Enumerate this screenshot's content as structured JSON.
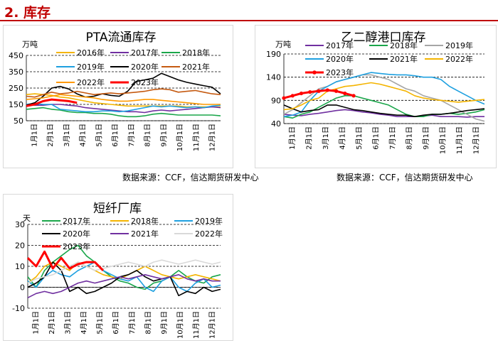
{
  "section_title": "2. 库存",
  "sources": {
    "pta": "数据来源：CCF，信达期货研发中心",
    "meg": "数据来源：CCF，信达期货研发中心"
  },
  "chart_data": [
    {
      "type": "line",
      "title": "PTA流通库存",
      "ylabel": "万吨",
      "ylim": [
        50,
        450
      ],
      "yticks": [
        50,
        150,
        250,
        350,
        450
      ],
      "grid": true,
      "x_ticks": [
        "1月1日",
        "2月1日",
        "3月1日",
        "4月1日",
        "5月1日",
        "6月1日",
        "7月1日",
        "8月1日",
        "9月1日",
        "10月1日",
        "11月1日",
        "12月1日"
      ],
      "series": [
        {
          "name": "2016年",
          "color": "#f4b400",
          "values": [
            210,
            215,
            210,
            205,
            195,
            190,
            180,
            170,
            160,
            155,
            150,
            145,
            140,
            140,
            140,
            140,
            140,
            140,
            140,
            135,
            135,
            135,
            135,
            135
          ]
        },
        {
          "name": "2017年",
          "color": "#7030a0",
          "values": [
            150,
            145,
            145,
            150,
            150,
            145,
            140,
            130,
            125,
            120,
            115,
            110,
            105,
            105,
            100,
            110,
            115,
            110,
            115,
            120,
            125,
            130,
            135,
            130
          ]
        },
        {
          "name": "2018年",
          "color": "#1aa64a",
          "values": [
            120,
            125,
            130,
            120,
            115,
            105,
            100,
            100,
            95,
            95,
            90,
            80,
            75,
            75,
            80,
            90,
            95,
            90,
            85,
            85,
            85,
            85,
            85,
            80
          ]
        },
        {
          "name": "2019年",
          "color": "#1ea0e0",
          "values": [
            150,
            155,
            150,
            150,
            120,
            115,
            110,
            105,
            105,
            110,
            110,
            105,
            110,
            120,
            130,
            140,
            135,
            140,
            135,
            130,
            135,
            130,
            140,
            145
          ]
        },
        {
          "name": "2020年",
          "color": "#000000",
          "values": [
            145,
            160,
            200,
            250,
            260,
            245,
            215,
            195,
            200,
            215,
            205,
            200,
            230,
            290,
            300,
            310,
            340,
            320,
            300,
            285,
            275,
            265,
            255,
            215
          ]
        },
        {
          "name": "2021年",
          "color": "#c55a11",
          "values": [
            200,
            195,
            210,
            225,
            215,
            220,
            230,
            220,
            210,
            215,
            220,
            215,
            220,
            225,
            230,
            240,
            245,
            240,
            225,
            230,
            235,
            225,
            215,
            210
          ]
        },
        {
          "name": "2022年",
          "color": "#ff9900",
          "values": [
            180,
            185,
            190,
            200,
            210,
            205,
            200,
            195,
            190,
            180,
            175,
            170,
            170,
            175,
            180,
            180,
            175,
            170,
            165,
            160,
            155,
            150,
            150,
            150
          ]
        },
        {
          "name": "2023年",
          "color": "#ff0000",
          "values": [
            140,
            150,
            170,
            180,
            175,
            170,
            160
          ]
        }
      ]
    },
    {
      "type": "line",
      "title": "乙二醇港口库存",
      "ylabel": "万吨",
      "ylim": [
        40,
        190
      ],
      "yticks": [
        40,
        90,
        140,
        190
      ],
      "grid": true,
      "x_ticks": [
        "1月1日",
        "2月1日",
        "3月1日",
        "4月1日",
        "5月1日",
        "6月1日",
        "7月1日",
        "8月1日",
        "9月1日",
        "10月1日",
        "11月1日",
        "12月1日"
      ],
      "series": [
        {
          "name": "2017年",
          "color": "#7030a0",
          "values": [
            60,
            58,
            57,
            60,
            62,
            65,
            68,
            70,
            68,
            65,
            63,
            60,
            58,
            55,
            55,
            55,
            56,
            58,
            55,
            55,
            55,
            54,
            55,
            55
          ]
        },
        {
          "name": "2018年",
          "color": "#1aa64a",
          "values": [
            55,
            52,
            60,
            65,
            75,
            85,
            95,
            100,
            100,
            95,
            90,
            85,
            80,
            70,
            60,
            55,
            55,
            60,
            60,
            62,
            60,
            62,
            65,
            70
          ]
        },
        {
          "name": "2019年",
          "color": "#a6a6a6",
          "values": [
            60,
            70,
            85,
            100,
            115,
            120,
            130,
            135,
            140,
            145,
            145,
            140,
            135,
            125,
            115,
            110,
            100,
            95,
            90,
            80,
            70,
            60,
            50,
            45
          ]
        },
        {
          "name": "2020年",
          "color": "#1ea0e0",
          "values": [
            55,
            58,
            65,
            90,
            110,
            120,
            130,
            135,
            140,
            145,
            150,
            148,
            146,
            145,
            145,
            143,
            140,
            140,
            135,
            120,
            110,
            100,
            90,
            82
          ]
        },
        {
          "name": "2021年",
          "color": "#000000",
          "values": [
            80,
            72,
            65,
            68,
            70,
            80,
            80,
            75,
            70,
            68,
            65,
            62,
            60,
            58,
            58,
            55,
            58,
            60,
            60,
            62,
            65,
            68,
            70,
            72
          ]
        },
        {
          "name": "2022年",
          "color": "#f4b400",
          "values": [
            70,
            72,
            80,
            90,
            95,
            110,
            115,
            120,
            122,
            125,
            128,
            125,
            120,
            115,
            110,
            100,
            95,
            92,
            90,
            88,
            86,
            88,
            90,
            92
          ]
        },
        {
          "name": "2023年",
          "color": "#ff0000",
          "values": [
            95,
            100,
            105,
            108,
            110,
            112,
            110,
            105,
            100
          ]
        }
      ]
    },
    {
      "type": "line",
      "title": "短纤厂库",
      "ylabel": "天",
      "ylim": [
        -10,
        30
      ],
      "yticks": [
        -10,
        0,
        10,
        20,
        30
      ],
      "grid": true,
      "x_ticks": [
        "1月1日",
        "2月1日",
        "3月1日",
        "4月1日",
        "5月1日",
        "6月1日",
        "7月1日",
        "8月1日",
        "9月1日",
        "10月1日",
        "11月1日",
        "12月1日"
      ],
      "series": [
        {
          "name": "2017年",
          "color": "#1aa64a",
          "values": [
            5,
            0,
            8,
            12,
            15,
            18,
            20,
            15,
            12,
            8,
            5,
            3,
            2,
            0,
            -1,
            2,
            3,
            5,
            8,
            5,
            3,
            2,
            5,
            6
          ]
        },
        {
          "name": "2018年",
          "color": "#f4b400",
          "values": [
            2,
            5,
            10,
            12,
            10,
            8,
            12,
            10,
            8,
            6,
            5,
            4,
            6,
            8,
            10,
            8,
            6,
            5,
            4,
            5,
            6,
            5,
            4,
            3
          ]
        },
        {
          "name": "2019年",
          "color": "#1ea0e0",
          "values": [
            3,
            0,
            5,
            8,
            6,
            5,
            8,
            10,
            12,
            8,
            6,
            4,
            3,
            5,
            0,
            -2,
            3,
            5,
            0,
            -2,
            2,
            4,
            0,
            1
          ]
        },
        {
          "name": "2020年",
          "color": "#000000",
          "values": [
            0,
            2,
            5,
            12,
            8,
            -2,
            0,
            -3,
            -2,
            0,
            2,
            5,
            6,
            8,
            5,
            3,
            4,
            5,
            -4,
            -2,
            -3,
            0,
            -2,
            -1
          ]
        },
        {
          "name": "2021年",
          "color": "#7030a0",
          "values": [
            -5,
            -3,
            -2,
            -3,
            -2,
            0,
            2,
            3,
            2,
            3,
            4,
            5,
            4,
            5,
            6,
            5,
            4,
            5,
            6,
            4,
            3,
            4,
            3,
            3
          ]
        },
        {
          "name": "2022年",
          "color": "#d9d9d9",
          "values": [
            2,
            4,
            5,
            6,
            8,
            10,
            12,
            10,
            8,
            9,
            10,
            11,
            12,
            11,
            10,
            12,
            13,
            12,
            11,
            12,
            13,
            12,
            11,
            12
          ]
        },
        {
          "name": "2023年",
          "color": "#ff0000",
          "values": [
            14,
            10,
            17,
            9,
            14,
            9,
            11,
            12,
            12,
            8
          ]
        }
      ]
    }
  ]
}
